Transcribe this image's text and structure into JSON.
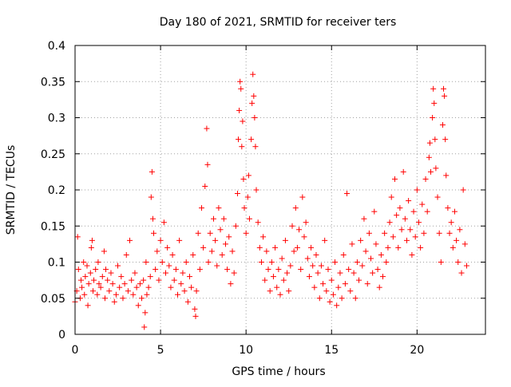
{
  "colors": {
    "series": "#ff0000",
    "axis": "#000000",
    "grid": "#a0a0a0",
    "background": "#ffffff"
  },
  "chart_data": {
    "type": "scatter",
    "title": "Day 180 of 2021, SRMTID for receiver ters",
    "xlabel": "GPS time / hours",
    "ylabel": "SRMTID / TECUs",
    "xlim": [
      0,
      24
    ],
    "ylim": [
      0,
      0.4
    ],
    "xticks": [
      0,
      5,
      10,
      15,
      20
    ],
    "xtick_labels": [
      "0",
      "5",
      "10",
      "15",
      "20"
    ],
    "yticks": [
      0,
      0.05,
      0.1,
      0.15,
      0.2,
      0.25,
      0.3,
      0.35,
      0.4
    ],
    "ytick_labels": [
      "0",
      "0.05",
      "0.1",
      "0.15",
      "0.2",
      "0.25",
      "0.3",
      "0.35",
      "0.4"
    ],
    "grid": true,
    "marker": "+",
    "series": [
      {
        "name": "ters",
        "color": "#ff0000",
        "points": [
          [
            0.0,
            0.045
          ],
          [
            0.1,
            0.06
          ],
          [
            0.15,
            0.135
          ],
          [
            0.2,
            0.09
          ],
          [
            0.3,
            0.05
          ],
          [
            0.35,
            0.075
          ],
          [
            0.4,
            0.065
          ],
          [
            0.5,
            0.1
          ],
          [
            0.55,
            0.055
          ],
          [
            0.6,
            0.08
          ],
          [
            0.7,
            0.095
          ],
          [
            0.75,
            0.04
          ],
          [
            0.8,
            0.07
          ],
          [
            0.9,
            0.085
          ],
          [
            0.95,
            0.12
          ],
          [
            1.0,
            0.13
          ],
          [
            1.05,
            0.06
          ],
          [
            1.1,
            0.075
          ],
          [
            1.2,
            0.09
          ],
          [
            1.3,
            0.055
          ],
          [
            1.35,
            0.1
          ],
          [
            1.4,
            0.07
          ],
          [
            1.5,
            0.065
          ],
          [
            1.6,
            0.08
          ],
          [
            1.7,
            0.115
          ],
          [
            1.75,
            0.05
          ],
          [
            1.8,
            0.09
          ],
          [
            1.9,
            0.075
          ],
          [
            2.0,
            0.06
          ],
          [
            2.1,
            0.085
          ],
          [
            2.2,
            0.07
          ],
          [
            2.3,
            0.045
          ],
          [
            2.4,
            0.055
          ],
          [
            2.5,
            0.095
          ],
          [
            2.6,
            0.065
          ],
          [
            2.7,
            0.08
          ],
          [
            2.8,
            0.05
          ],
          [
            2.9,
            0.07
          ],
          [
            3.0,
            0.11
          ],
          [
            3.1,
            0.06
          ],
          [
            3.2,
            0.13
          ],
          [
            3.3,
            0.075
          ],
          [
            3.4,
            0.055
          ],
          [
            3.5,
            0.085
          ],
          [
            3.6,
            0.065
          ],
          [
            3.7,
            0.04
          ],
          [
            3.8,
            0.07
          ],
          [
            3.9,
            0.05
          ],
          [
            4.0,
            0.075
          ],
          [
            4.05,
            0.01
          ],
          [
            4.1,
            0.03
          ],
          [
            4.15,
            0.1
          ],
          [
            4.2,
            0.055
          ],
          [
            4.3,
            0.065
          ],
          [
            4.4,
            0.08
          ],
          [
            4.45,
            0.19
          ],
          [
            4.5,
            0.225
          ],
          [
            4.55,
            0.16
          ],
          [
            4.6,
            0.14
          ],
          [
            4.7,
            0.09
          ],
          [
            4.8,
            0.115
          ],
          [
            4.9,
            0.075
          ],
          [
            5.0,
            0.13
          ],
          [
            5.1,
            0.1
          ],
          [
            5.2,
            0.155
          ],
          [
            5.3,
            0.085
          ],
          [
            5.4,
            0.12
          ],
          [
            5.5,
            0.095
          ],
          [
            5.6,
            0.065
          ],
          [
            5.7,
            0.11
          ],
          [
            5.8,
            0.075
          ],
          [
            5.9,
            0.09
          ],
          [
            6.0,
            0.055
          ],
          [
            6.1,
            0.13
          ],
          [
            6.2,
            0.07
          ],
          [
            6.3,
            0.085
          ],
          [
            6.4,
            0.06
          ],
          [
            6.5,
            0.1
          ],
          [
            6.6,
            0.045
          ],
          [
            6.7,
            0.08
          ],
          [
            6.8,
            0.065
          ],
          [
            6.9,
            0.11
          ],
          [
            7.0,
            0.035
          ],
          [
            7.05,
            0.025
          ],
          [
            7.1,
            0.06
          ],
          [
            7.2,
            0.14
          ],
          [
            7.3,
            0.09
          ],
          [
            7.4,
            0.175
          ],
          [
            7.5,
            0.12
          ],
          [
            7.6,
            0.205
          ],
          [
            7.7,
            0.285
          ],
          [
            7.75,
            0.235
          ],
          [
            7.8,
            0.1
          ],
          [
            7.9,
            0.14
          ],
          [
            8.0,
            0.115
          ],
          [
            8.1,
            0.16
          ],
          [
            8.2,
            0.13
          ],
          [
            8.3,
            0.095
          ],
          [
            8.4,
            0.175
          ],
          [
            8.5,
            0.145
          ],
          [
            8.6,
            0.11
          ],
          [
            8.7,
            0.16
          ],
          [
            8.8,
            0.125
          ],
          [
            8.9,
            0.09
          ],
          [
            9.0,
            0.135
          ],
          [
            9.1,
            0.07
          ],
          [
            9.2,
            0.115
          ],
          [
            9.3,
            0.085
          ],
          [
            9.4,
            0.15
          ],
          [
            9.5,
            0.195
          ],
          [
            9.55,
            0.27
          ],
          [
            9.6,
            0.31
          ],
          [
            9.65,
            0.35
          ],
          [
            9.7,
            0.34
          ],
          [
            9.75,
            0.26
          ],
          [
            9.8,
            0.295
          ],
          [
            9.85,
            0.215
          ],
          [
            9.9,
            0.175
          ],
          [
            10.0,
            0.14
          ],
          [
            10.1,
            0.19
          ],
          [
            10.15,
            0.22
          ],
          [
            10.2,
            0.16
          ],
          [
            10.3,
            0.27
          ],
          [
            10.35,
            0.32
          ],
          [
            10.4,
            0.36
          ],
          [
            10.45,
            0.33
          ],
          [
            10.5,
            0.3
          ],
          [
            10.55,
            0.26
          ],
          [
            10.6,
            0.2
          ],
          [
            10.7,
            0.155
          ],
          [
            10.8,
            0.12
          ],
          [
            10.9,
            0.1
          ],
          [
            11.0,
            0.135
          ],
          [
            11.1,
            0.075
          ],
          [
            11.2,
            0.115
          ],
          [
            11.3,
            0.09
          ],
          [
            11.4,
            0.06
          ],
          [
            11.5,
            0.1
          ],
          [
            11.6,
            0.08
          ],
          [
            11.7,
            0.12
          ],
          [
            11.8,
            0.065
          ],
          [
            11.9,
            0.09
          ],
          [
            12.0,
            0.055
          ],
          [
            12.1,
            0.105
          ],
          [
            12.2,
            0.075
          ],
          [
            12.3,
            0.13
          ],
          [
            12.4,
            0.085
          ],
          [
            12.5,
            0.06
          ],
          [
            12.6,
            0.095
          ],
          [
            12.7,
            0.15
          ],
          [
            12.8,
            0.115
          ],
          [
            12.9,
            0.175
          ],
          [
            13.0,
            0.12
          ],
          [
            13.1,
            0.145
          ],
          [
            13.2,
            0.09
          ],
          [
            13.3,
            0.19
          ],
          [
            13.4,
            0.135
          ],
          [
            13.5,
            0.155
          ],
          [
            13.6,
            0.105
          ],
          [
            13.7,
            0.08
          ],
          [
            13.8,
            0.12
          ],
          [
            13.9,
            0.095
          ],
          [
            14.0,
            0.065
          ],
          [
            14.1,
            0.11
          ],
          [
            14.2,
            0.085
          ],
          [
            14.3,
            0.05
          ],
          [
            14.4,
            0.095
          ],
          [
            14.5,
            0.07
          ],
          [
            14.6,
            0.13
          ],
          [
            14.7,
            0.06
          ],
          [
            14.8,
            0.09
          ],
          [
            14.9,
            0.045
          ],
          [
            15.0,
            0.075
          ],
          [
            15.1,
            0.055
          ],
          [
            15.2,
            0.1
          ],
          [
            15.3,
            0.04
          ],
          [
            15.4,
            0.065
          ],
          [
            15.5,
            0.085
          ],
          [
            15.6,
            0.05
          ],
          [
            15.7,
            0.11
          ],
          [
            15.8,
            0.07
          ],
          [
            15.9,
            0.195
          ],
          [
            16.0,
            0.09
          ],
          [
            16.1,
            0.06
          ],
          [
            16.2,
            0.125
          ],
          [
            16.3,
            0.085
          ],
          [
            16.4,
            0.05
          ],
          [
            16.5,
            0.1
          ],
          [
            16.6,
            0.075
          ],
          [
            16.7,
            0.13
          ],
          [
            16.8,
            0.095
          ],
          [
            16.9,
            0.16
          ],
          [
            17.0,
            0.115
          ],
          [
            17.1,
            0.07
          ],
          [
            17.2,
            0.14
          ],
          [
            17.3,
            0.105
          ],
          [
            17.4,
            0.085
          ],
          [
            17.5,
            0.17
          ],
          [
            17.6,
            0.125
          ],
          [
            17.7,
            0.09
          ],
          [
            17.8,
            0.065
          ],
          [
            17.9,
            0.11
          ],
          [
            18.0,
            0.08
          ],
          [
            18.1,
            0.14
          ],
          [
            18.2,
            0.1
          ],
          [
            18.3,
            0.12
          ],
          [
            18.4,
            0.155
          ],
          [
            18.5,
            0.19
          ],
          [
            18.6,
            0.135
          ],
          [
            18.7,
            0.215
          ],
          [
            18.8,
            0.165
          ],
          [
            18.9,
            0.12
          ],
          [
            19.0,
            0.175
          ],
          [
            19.1,
            0.145
          ],
          [
            19.2,
            0.225
          ],
          [
            19.3,
            0.16
          ],
          [
            19.4,
            0.13
          ],
          [
            19.5,
            0.185
          ],
          [
            19.6,
            0.145
          ],
          [
            19.7,
            0.11
          ],
          [
            19.8,
            0.17
          ],
          [
            19.9,
            0.135
          ],
          [
            20.0,
            0.2
          ],
          [
            20.1,
            0.155
          ],
          [
            20.2,
            0.12
          ],
          [
            20.3,
            0.18
          ],
          [
            20.4,
            0.14
          ],
          [
            20.5,
            0.215
          ],
          [
            20.6,
            0.17
          ],
          [
            20.7,
            0.245
          ],
          [
            20.75,
            0.265
          ],
          [
            20.8,
            0.225
          ],
          [
            20.9,
            0.3
          ],
          [
            20.95,
            0.34
          ],
          [
            21.0,
            0.32
          ],
          [
            21.05,
            0.27
          ],
          [
            21.1,
            0.23
          ],
          [
            21.2,
            0.19
          ],
          [
            21.3,
            0.14
          ],
          [
            21.4,
            0.1
          ],
          [
            21.5,
            0.29
          ],
          [
            21.55,
            0.34
          ],
          [
            21.6,
            0.33
          ],
          [
            21.65,
            0.27
          ],
          [
            21.7,
            0.22
          ],
          [
            21.8,
            0.175
          ],
          [
            21.9,
            0.14
          ],
          [
            22.0,
            0.155
          ],
          [
            22.1,
            0.12
          ],
          [
            22.2,
            0.17
          ],
          [
            22.3,
            0.13
          ],
          [
            22.4,
            0.1
          ],
          [
            22.5,
            0.145
          ],
          [
            22.6,
            0.085
          ],
          [
            22.7,
            0.2
          ],
          [
            22.8,
            0.125
          ],
          [
            22.9,
            0.095
          ]
        ]
      }
    ]
  }
}
